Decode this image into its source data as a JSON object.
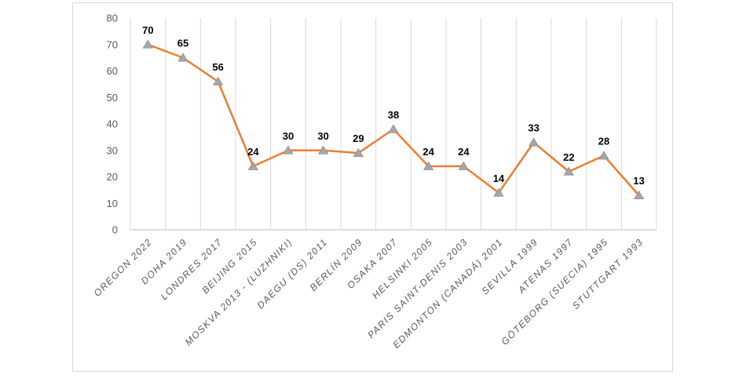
{
  "chart_data": {
    "type": "line",
    "title": "",
    "xlabel": "",
    "ylabel": "",
    "categories": [
      "OREGON 2022",
      "DOHA 2019",
      "LONDRES 2017",
      "BEIJING 2015",
      "MOSKVA 2013 - (LUZHNIKI)",
      "DAEGU (DS) 2011",
      "BERLÍN 2009",
      "OSAKA 2007",
      "HELSINKI 2005",
      "PARIS SAINT-DENIS 2003",
      "EDMONTON (CANADÁ) 2001",
      "SEVILLA 1999",
      "ATENAS 1997",
      "GÖTEBORG (SUECIA) 1995",
      "STUTTGART 1993"
    ],
    "values": [
      70,
      65,
      56,
      24,
      30,
      30,
      29,
      38,
      24,
      24,
      14,
      33,
      22,
      28,
      13
    ],
    "ylim": [
      0,
      80
    ],
    "ytick_interval": 10,
    "yticks": [
      0,
      10,
      20,
      30,
      40,
      50,
      60,
      70,
      80
    ],
    "grid": "vertical-only",
    "legend_position": "none",
    "data_labels": "above",
    "marker": "triangle-up",
    "colors": {
      "line": "#ED7D31",
      "marker": "#A6A6A6",
      "marker_edge": "#8F8F8F",
      "value_label": "#000000",
      "axis_text": "#595959",
      "gridline": "#D9D9D9",
      "axis_line": "#BFBFBF",
      "frame_border": "#D9D9D9",
      "background": "#FFFFFF"
    }
  }
}
